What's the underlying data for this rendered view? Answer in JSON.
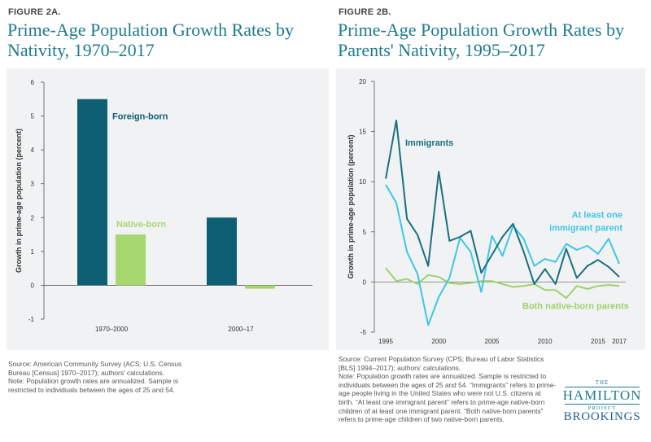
{
  "figure_a": {
    "label": "FIGURE 2A.",
    "title_line1": "Prime-Age Population Growth Rates by",
    "title_line2": "Nativity, 1970–2017",
    "source": "Source: American Community Survey (ACS; U.S. Census Bureau [Census] 1970–2017); authors' calculations.",
    "note": "Note: Population growth rates are annualized. Sample is restricted to individuals between the ages of 25 and 54."
  },
  "figure_b": {
    "label": "FIGURE 2B.",
    "title_line1": "Prime-Age Population Growth Rates by",
    "title_line2": "Parents' Nativity, 1995–2017",
    "source": "Source: Current Population Survey (CPS; Bureau of Labor Statistics [BLS] 1994–2017); authors' calculations.",
    "note": "Note: Population growth rates are annualized. Sample is restricted to individuals between the ages of 25 and 54. “Immigrants” refers to prime-age people living in the United States who were not U.S. citizens at birth. “At least one immigrant parent” refers to prime-age native-born children of at least one immigrant parent. “Both native-born parents” refers to prime-age children of two native-born parents."
  },
  "logo": {
    "the": "THE",
    "hamilton": "HAMILTON",
    "project": "PROJECT",
    "brookings": "BROOKINGS"
  },
  "chart_data": [
    {
      "type": "bar",
      "ylabel": "Growth in prime-age population (percent)",
      "ylim": [
        -1,
        6
      ],
      "yticks": [
        -1,
        0,
        1,
        2,
        3,
        4,
        5,
        6
      ],
      "categories": [
        "1970–2000",
        "2000–17"
      ],
      "series": [
        {
          "name": "Foreign-born",
          "color": "#0e5f73",
          "values": [
            5.5,
            2.0
          ]
        },
        {
          "name": "Native-born",
          "color": "#a6d86f",
          "values": [
            1.5,
            -0.1
          ]
        }
      ],
      "grid": false
    },
    {
      "type": "line",
      "ylabel": "Growth in prime-age population (percent)",
      "ylim": [
        -5,
        20
      ],
      "yticks": [
        -5,
        0,
        5,
        10,
        15,
        20
      ],
      "xlim": [
        1995,
        2017
      ],
      "xticks": [
        1995,
        2000,
        2005,
        2010,
        2015,
        2017
      ],
      "x": [
        1995,
        1996,
        1997,
        1998,
        1999,
        2000,
        2001,
        2002,
        2003,
        2004,
        2005,
        2006,
        2007,
        2008,
        2009,
        2010,
        2011,
        2012,
        2013,
        2014,
        2015,
        2016,
        2017
      ],
      "series": [
        {
          "name": "Immigrants",
          "color": "#1a6f80",
          "values": [
            10.3,
            16.1,
            6.3,
            4.7,
            1.6,
            11.0,
            4.1,
            4.5,
            5.1,
            0.9,
            2.7,
            4.5,
            5.8,
            3.0,
            -0.2,
            1.3,
            -0.2,
            3.3,
            0.4,
            1.6,
            2.2,
            1.5,
            0.5
          ]
        },
        {
          "name": "At least one immigrant parent",
          "label_line1": "At least one",
          "label_line2": "immigrant parent",
          "color": "#3fc6e6",
          "values": [
            9.7,
            7.9,
            3.0,
            0.8,
            -4.3,
            -1.5,
            0.4,
            4.4,
            3.0,
            -1.0,
            4.6,
            2.6,
            5.6,
            4.3,
            1.6,
            2.3,
            2.0,
            3.8,
            3.2,
            3.6,
            2.8,
            4.3,
            1.8
          ]
        },
        {
          "name": "Both native-born parents",
          "color": "#9fd26a",
          "values": [
            1.4,
            0.1,
            0.3,
            -0.2,
            0.7,
            0.5,
            -0.1,
            -0.2,
            -0.1,
            0.1,
            0.1,
            -0.2,
            -0.5,
            -0.4,
            -0.2,
            -0.8,
            -0.8,
            -1.6,
            -0.4,
            -0.7,
            -0.4,
            -0.3,
            -0.4
          ]
        }
      ],
      "grid": false
    }
  ]
}
